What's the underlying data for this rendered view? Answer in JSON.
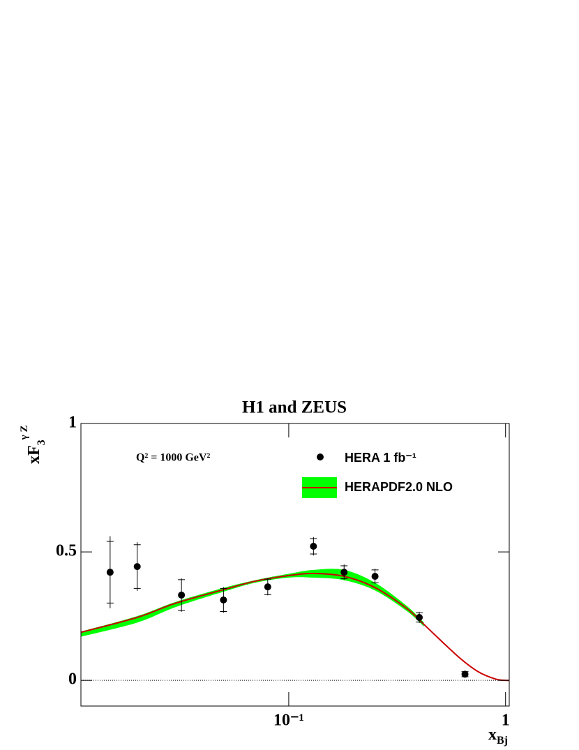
{
  "chart_data": {
    "type": "scatter",
    "title": "H1 and ZEUS",
    "annotation": "Q² = 1000 GeV²",
    "x_label": {
      "text": "x",
      "sub": "Bj"
    },
    "y_label": {
      "text": "xF",
      "sub": "3",
      "sup": "γ Z"
    },
    "xscale": "log",
    "xlim": [
      0.011,
      1.04
    ],
    "ylim": [
      -0.1,
      1
    ],
    "xticks": [
      {
        "value": 0.1,
        "label": "10⁻¹"
      },
      1
    ],
    "yticks": [
      0,
      {
        "value": 0.5,
        "label": "0.5"
      },
      1
    ],
    "legend": "top-right",
    "series": [
      {
        "name": "HERA 1 fb⁻¹",
        "type": "scatter",
        "color": "#000000",
        "x": [
          0.015,
          0.02,
          0.032,
          0.05,
          0.08,
          0.13,
          0.18,
          0.25,
          0.4,
          0.65
        ],
        "values": [
          0.421,
          0.443,
          0.332,
          0.313,
          0.364,
          0.522,
          0.421,
          0.405,
          0.245,
          0.024
        ],
        "errors": [
          0.14,
          0.095,
          0.065,
          0.05,
          0.033,
          0.036,
          0.03,
          0.03,
          0.022,
          0.012
        ],
        "stat_errors": [
          0.12,
          0.085,
          0.06,
          0.045,
          0.03,
          0.03,
          0.025,
          0.025,
          0.018,
          0.01
        ]
      },
      {
        "name": "HERAPDF2.0 NLO",
        "type": "band",
        "color": "#cc0000",
        "band_color": "#00ff00",
        "x": [
          0.011,
          0.02,
          0.03,
          0.05,
          0.07,
          0.1,
          0.13,
          0.18,
          0.25,
          0.35,
          0.42,
          0.6,
          0.75,
          0.9,
          1.0,
          1.04
        ],
        "values": [
          0.187,
          0.245,
          0.3,
          0.353,
          0.386,
          0.408,
          0.416,
          0.405,
          0.361,
          0.28,
          0.218,
          0.095,
          0.033,
          0.005,
          0,
          0
        ],
        "lower": [
          0.17,
          0.225,
          0.285,
          0.345,
          0.38,
          0.4,
          0.4,
          0.39,
          0.35,
          0.27,
          0.21,
          null,
          null,
          null,
          null,
          null
        ],
        "upper": [
          0.19,
          0.25,
          0.305,
          0.36,
          0.39,
          0.415,
          0.43,
          0.43,
          0.38,
          0.29,
          0.225,
          null,
          null,
          null,
          null,
          null
        ]
      }
    ]
  }
}
